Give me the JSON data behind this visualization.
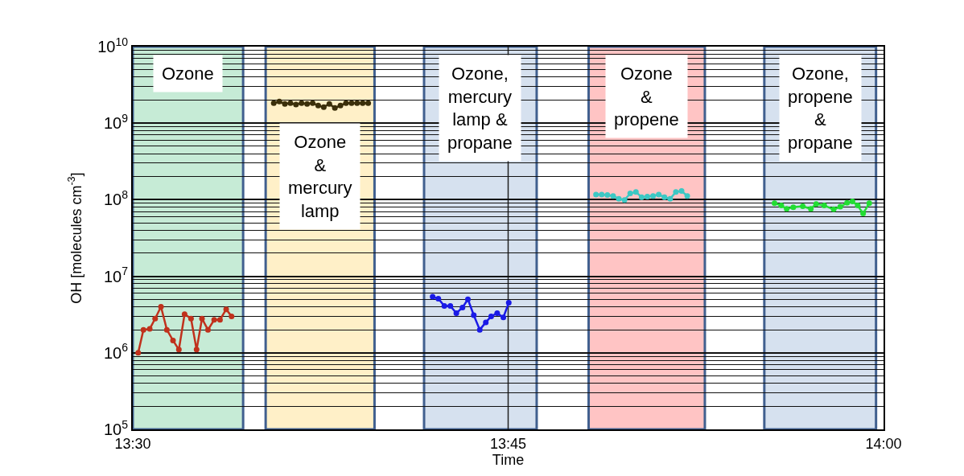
{
  "chart_data": {
    "type": "line",
    "xlabel": "Time",
    "ylabel": "OH [molecules cm$^{-3}$]",
    "log": true,
    "grid": "y",
    "ref_lines": [
      {
        "axis": "x",
        "value": 13.75,
        "color": "#222222"
      }
    ],
    "marker": "circle",
    "line_style": "solid",
    "xlim": [
      13.5,
      14.0
    ],
    "xticks": [
      {
        "value": 13.5,
        "label": "13:30"
      },
      {
        "value": 13.75,
        "label": "13:45"
      },
      {
        "value": 14.0,
        "label": "14:00"
      }
    ],
    "ylim": [
      100000,
      10000000000
    ],
    "yticks": [
      {
        "value": 100000,
        "label": "10$^{5}$"
      },
      {
        "value": 1000000,
        "label": "10$^{6}$"
      },
      {
        "value": 10000000,
        "label": "10$^{7}$"
      },
      {
        "value": 100000000,
        "label": "10$^{8}$"
      },
      {
        "value": 1000000000,
        "label": "10$^{9}$"
      },
      {
        "value": 10000000000,
        "label": "10$^{10}$"
      }
    ],
    "bands": [
      {
        "axis": "x",
        "from": 13.5,
        "to": 13.5735,
        "label": "Ozone",
        "color": "#c6ebd6"
      },
      {
        "axis": "x",
        "from": 13.5885,
        "to": 13.661,
        "label": "Ozone\n&\nmercury\nlamp",
        "color": "#fff0c8"
      },
      {
        "axis": "x",
        "from": 13.694,
        "to": 13.769,
        "label": "Ozone,\nmercury\nlamp &\npropane",
        "color": "#d6e1ef"
      },
      {
        "axis": "x",
        "from": 13.8036,
        "to": 13.881,
        "label": "Ozone\n&\npropene",
        "color": "#ffc4c4"
      },
      {
        "axis": "x",
        "from": 13.9206,
        "to": 13.995,
        "label": "Ozone,\npropene\n&\npropane",
        "color": "#d6e1ef"
      }
    ],
    "series": [
      {
        "color": "#c0311c",
        "x": [
          13.5036,
          13.5071,
          13.5113,
          13.5149,
          13.5188,
          13.5227,
          13.5268,
          13.5307,
          13.5345,
          13.5388,
          13.5425,
          13.5461,
          13.5501,
          13.5542,
          13.5581,
          13.5622,
          13.5658
        ],
        "values": [
          1000000,
          2000000,
          2050000,
          2800000,
          4000000,
          2000000,
          1450000,
          1100000,
          3200000,
          2800000,
          1100000,
          2800000,
          2000000,
          2700000,
          2700000,
          3700000,
          3000000
        ]
      },
      {
        "color": "#3b2f0a",
        "x": [
          13.5939,
          13.5976,
          13.6013,
          13.605,
          13.6087,
          13.6124,
          13.6161,
          13.6198,
          13.6235,
          13.6272,
          13.6309,
          13.6346,
          13.6383,
          13.642,
          13.6457,
          13.6494,
          13.6531,
          13.6568
        ],
        "values": [
          1830000000,
          1920000000,
          1790000000,
          1830000000,
          1750000000,
          1830000000,
          1790000000,
          1830000000,
          1700000000,
          1620000000,
          1790000000,
          1580000000,
          1700000000,
          1830000000,
          1830000000,
          1830000000,
          1830000000,
          1830000000
        ]
      },
      {
        "color": "#1a1ae6",
        "x": [
          13.6997,
          13.7035,
          13.7075,
          13.7115,
          13.7155,
          13.7196,
          13.7232,
          13.7271,
          13.7311,
          13.7351,
          13.7387,
          13.7427,
          13.7468,
          13.7504
        ],
        "values": [
          5400000,
          5100000,
          4100000,
          4100000,
          3300000,
          3900000,
          5000000,
          3100000,
          2000000,
          2500000,
          3000000,
          3300000,
          2900000,
          4500000
        ]
      },
      {
        "color": "#3cc8c4",
        "x": [
          13.8085,
          13.8123,
          13.8161,
          13.8199,
          13.8237,
          13.8275,
          13.8313,
          13.8351,
          13.8389,
          13.8427,
          13.8465,
          13.8503,
          13.8541,
          13.8579,
          13.8617,
          13.8655,
          13.8693
        ],
        "values": [
          117000000,
          117000000,
          115000000,
          112000000,
          103000000,
          99000000,
          121000000,
          126000000,
          108000000,
          110000000,
          112000000,
          117000000,
          108000000,
          103000000,
          126000000,
          130000000,
          112000000
        ]
      },
      {
        "color": "#22dd33",
        "x": [
          13.9274,
          13.9319,
          13.9355,
          13.9399,
          13.9462,
          13.9516,
          13.9551,
          13.9605,
          13.9668,
          13.9712,
          13.9757,
          13.9793,
          13.9828,
          13.9864,
          13.9905
        ],
        "values": [
          90000000,
          84000000,
          76000000,
          80000000,
          82000000,
          76000000,
          88000000,
          84000000,
          75000000,
          81000000,
          91000000,
          95000000,
          84000000,
          66000000,
          90000000
        ]
      }
    ]
  }
}
